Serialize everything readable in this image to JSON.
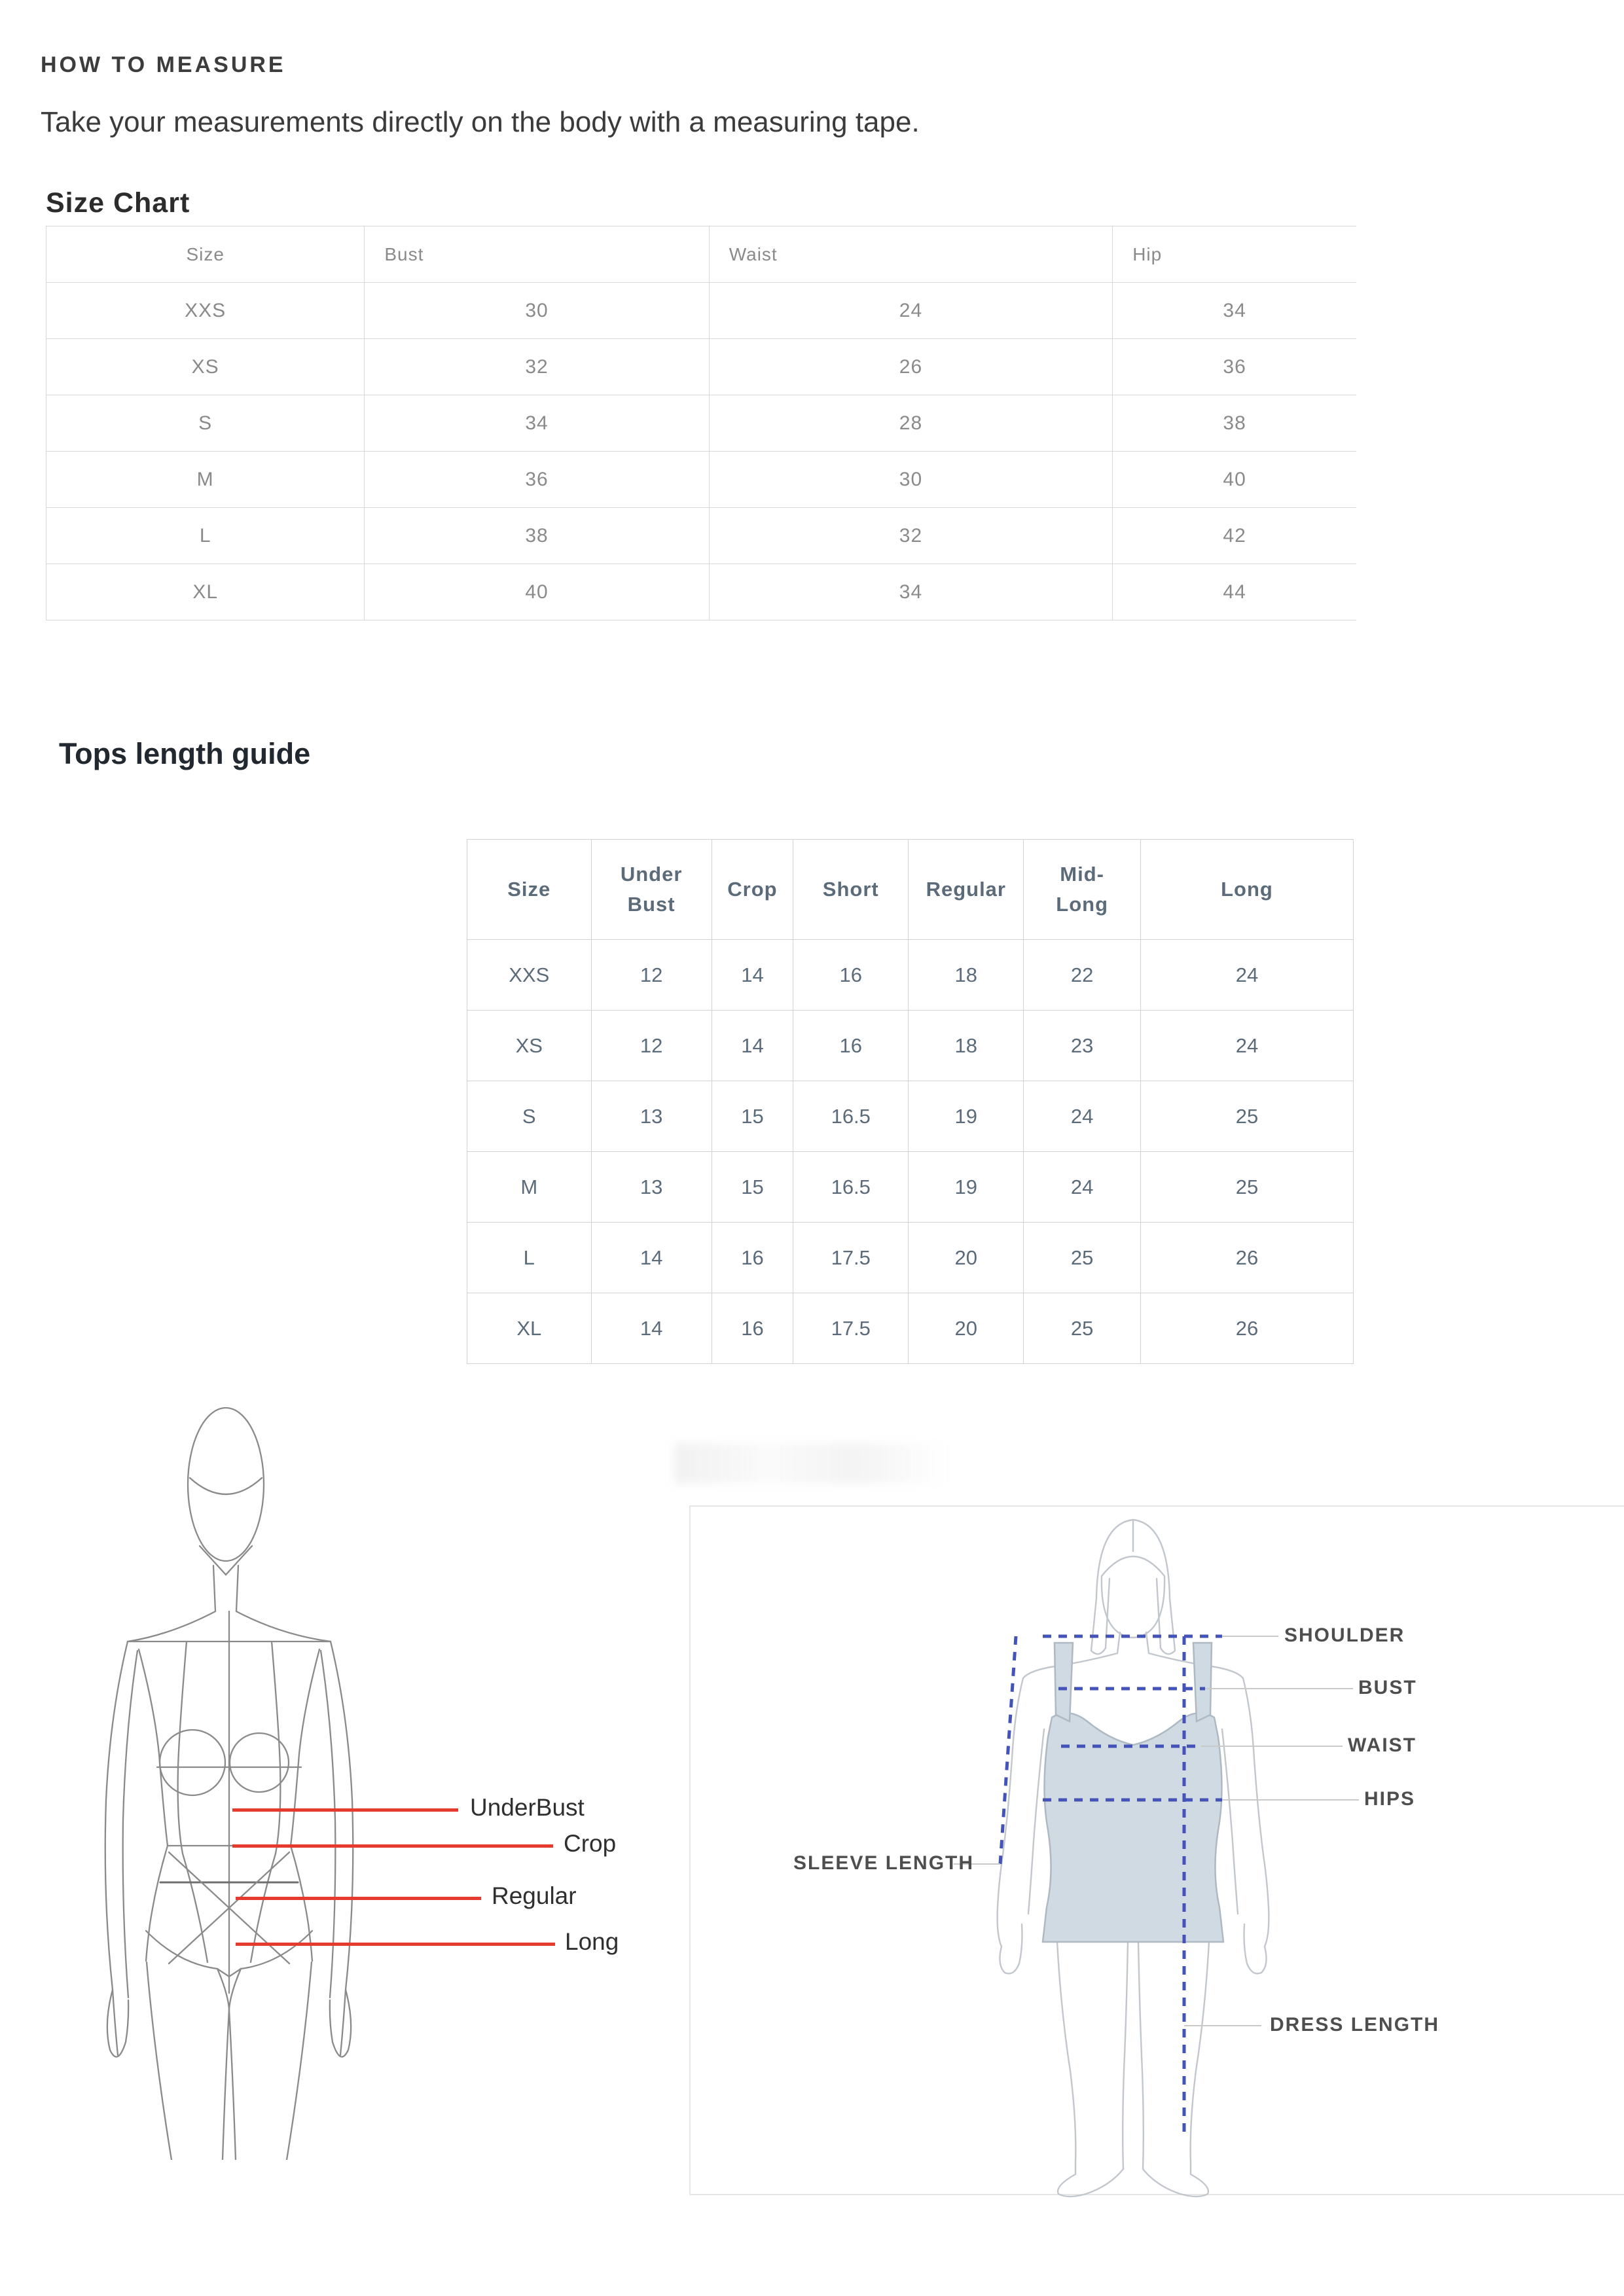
{
  "page": {
    "title": "HOW TO MEASURE",
    "intro": "Take your measurements directly on the body with a measuring tape."
  },
  "size_chart": {
    "title": "Size Chart",
    "columns": [
      "Size",
      "Bust",
      "Waist",
      "Hip"
    ],
    "rows": [
      [
        "XXS",
        "30",
        "24",
        "34"
      ],
      [
        "XS",
        "32",
        "26",
        "36"
      ],
      [
        "S",
        "34",
        "28",
        "38"
      ],
      [
        "M",
        "36",
        "30",
        "40"
      ],
      [
        "L",
        "38",
        "32",
        "42"
      ],
      [
        "XL",
        "40",
        "34",
        "44"
      ]
    ]
  },
  "tops_length_guide": {
    "title": "Tops length guide",
    "columns": [
      [
        "Size"
      ],
      [
        "Under",
        "Bust"
      ],
      [
        "Crop"
      ],
      [
        "Short"
      ],
      [
        "Regular"
      ],
      [
        "Mid-",
        "Long"
      ],
      [
        "Long"
      ]
    ],
    "rows": [
      [
        "XXS",
        "12",
        "14",
        "16",
        "18",
        "22",
        "24"
      ],
      [
        "XS",
        "12",
        "14",
        "16",
        "18",
        "23",
        "24"
      ],
      [
        "S",
        "13",
        "15",
        "16.5",
        "19",
        "24",
        "25"
      ],
      [
        "M",
        "13",
        "15",
        "16.5",
        "19",
        "24",
        "25"
      ],
      [
        "L",
        "14",
        "16",
        "17.5",
        "20",
        "25",
        "26"
      ],
      [
        "XL",
        "14",
        "16",
        "17.5",
        "20",
        "25",
        "26"
      ]
    ]
  },
  "length_diagram": {
    "labels": {
      "underbust": "UnderBust",
      "crop": "Crop",
      "regular": "Regular",
      "long": "Long"
    },
    "line_color": "#e63a2e"
  },
  "measure_diagram": {
    "labels": {
      "shoulder": "SHOULDER",
      "bust": "BUST",
      "waist": "WAIST",
      "hips": "HIPS",
      "sleeve_length": "SLEEVE LENGTH",
      "dress_length": "DRESS LENGTH"
    },
    "dash_color": "#4353b8",
    "dress_fill": "#cfdae3"
  }
}
